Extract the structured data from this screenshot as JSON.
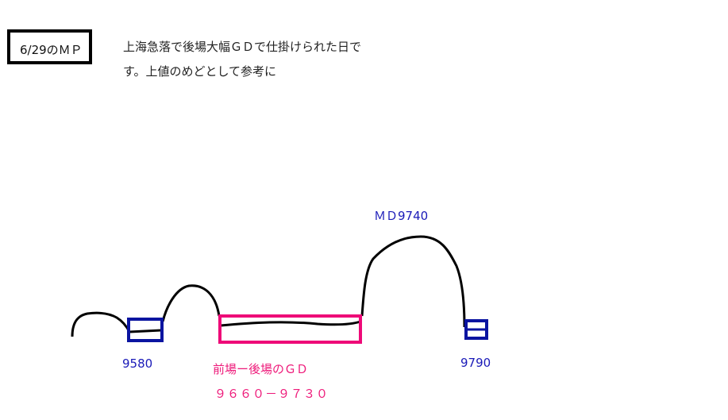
{
  "title_box": "6/29のＭＰ",
  "note": {
    "line1": "上海急落で後場大幅ＧＤで仕掛けられた日で",
    "line2": "す。上値のめどとして参考に"
  },
  "labels": {
    "md": "ＭＤ9740",
    "low": "9580",
    "high": "9790",
    "gap_title": "前場ー後場のＧＤ",
    "gap_range": "９６６０－９７３０"
  },
  "colors": {
    "line": "#000000",
    "blue_box": "#0a14a0",
    "pink_box": "#ee0a78",
    "blue_text": "#1a1ab8",
    "pink_text": "#ee1a7a"
  }
}
